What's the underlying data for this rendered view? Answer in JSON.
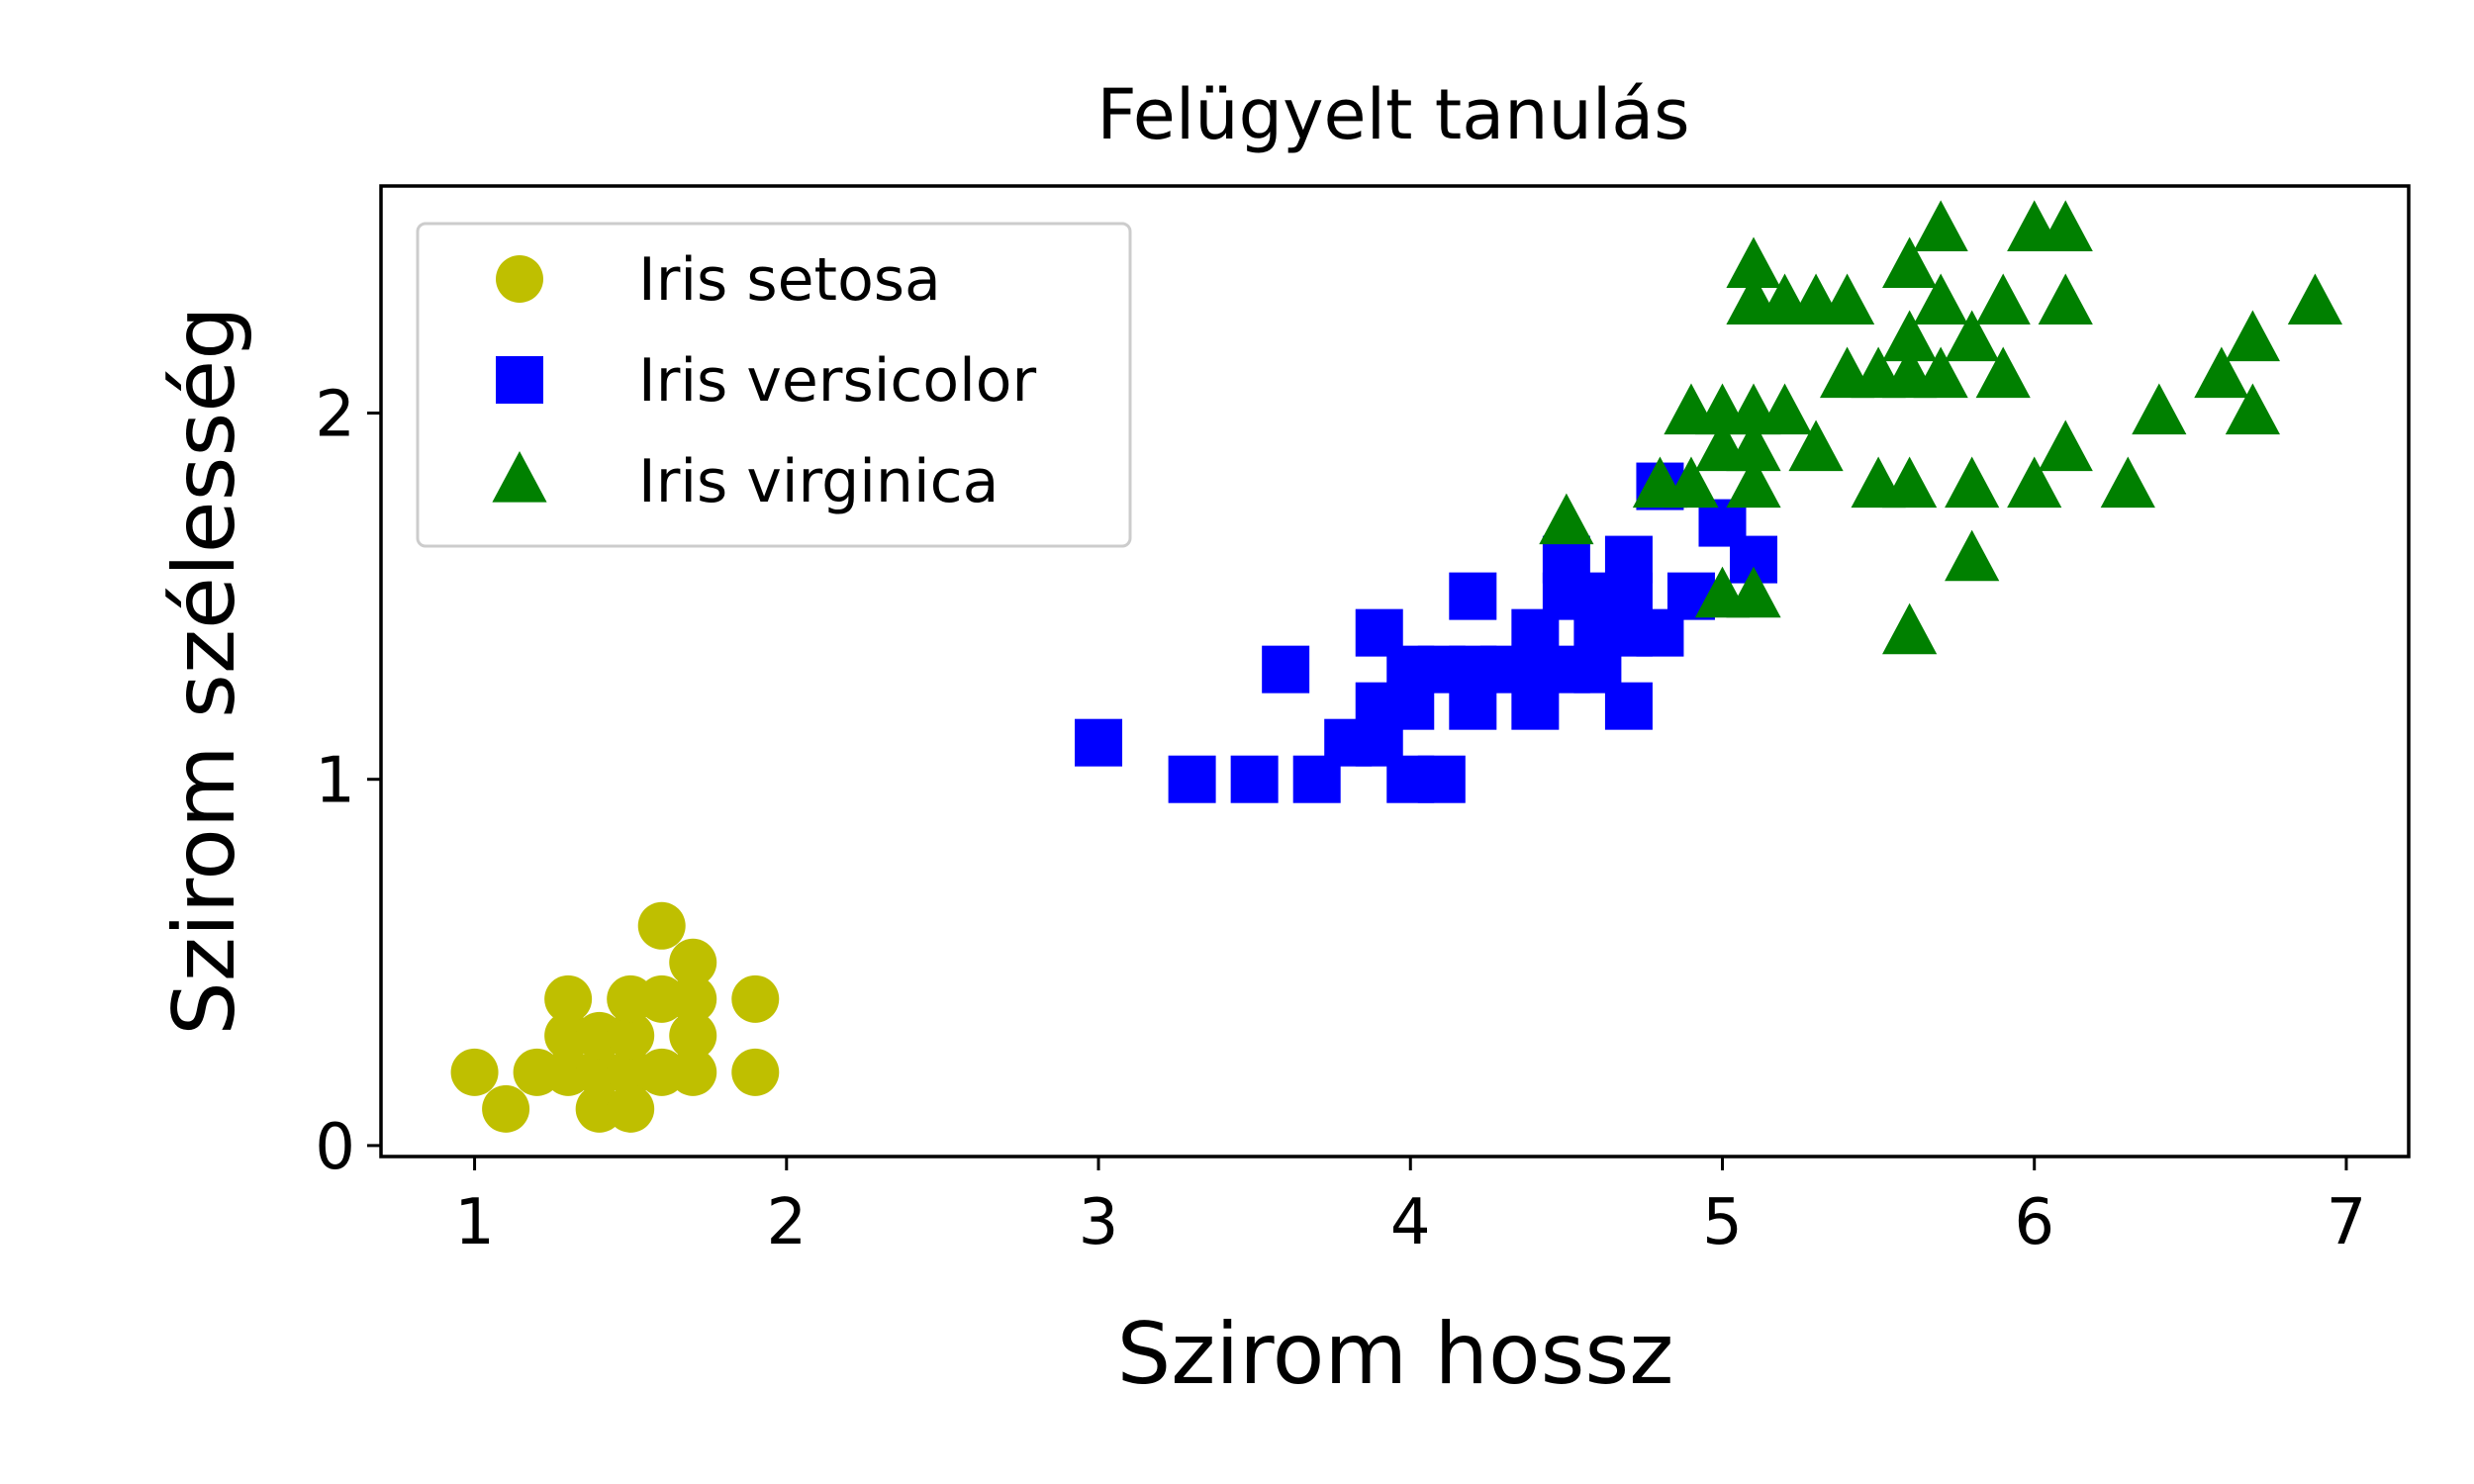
{
  "chart_data": {
    "type": "scatter",
    "title": "Felügyelt tanulás",
    "xlabel": "Szirom hossz",
    "ylabel": "Szirom szélesség",
    "xlim": [
      0.7,
      7.2
    ],
    "ylim": [
      -0.03,
      2.62
    ],
    "xticks": [
      1,
      2,
      3,
      4,
      5,
      6,
      7
    ],
    "xtick_labels": [
      "1",
      "2",
      "3",
      "4",
      "5",
      "6",
      "7"
    ],
    "yticks": [
      0,
      1,
      2
    ],
    "ytick_labels": [
      "0",
      "1",
      "2"
    ],
    "grid": false,
    "legend_position": "top-left",
    "series": [
      {
        "name": "Iris setosa",
        "marker": "circle",
        "color": "#bfbf00",
        "points": [
          [
            1.0,
            0.2
          ],
          [
            1.1,
            0.1
          ],
          [
            1.2,
            0.2
          ],
          [
            1.3,
            0.2
          ],
          [
            1.3,
            0.3
          ],
          [
            1.3,
            0.4
          ],
          [
            1.4,
            0.2
          ],
          [
            1.4,
            0.1
          ],
          [
            1.4,
            0.3
          ],
          [
            1.5,
            0.2
          ],
          [
            1.5,
            0.1
          ],
          [
            1.5,
            0.3
          ],
          [
            1.5,
            0.4
          ],
          [
            1.6,
            0.2
          ],
          [
            1.6,
            0.4
          ],
          [
            1.6,
            0.6
          ],
          [
            1.7,
            0.2
          ],
          [
            1.7,
            0.3
          ],
          [
            1.7,
            0.4
          ],
          [
            1.7,
            0.5
          ],
          [
            1.9,
            0.2
          ],
          [
            1.9,
            0.4
          ]
        ]
      },
      {
        "name": "Iris versicolor",
        "marker": "square",
        "color": "#0000ff",
        "points": [
          [
            3.0,
            1.1
          ],
          [
            3.3,
            1.0
          ],
          [
            3.5,
            1.0
          ],
          [
            3.6,
            1.3
          ],
          [
            3.7,
            1.0
          ],
          [
            3.8,
            1.1
          ],
          [
            3.9,
            1.1
          ],
          [
            3.9,
            1.2
          ],
          [
            3.9,
            1.4
          ],
          [
            4.0,
            1.0
          ],
          [
            4.0,
            1.2
          ],
          [
            4.0,
            1.3
          ],
          [
            4.1,
            1.0
          ],
          [
            4.1,
            1.3
          ],
          [
            4.2,
            1.2
          ],
          [
            4.2,
            1.3
          ],
          [
            4.2,
            1.5
          ],
          [
            4.3,
            1.3
          ],
          [
            4.4,
            1.2
          ],
          [
            4.4,
            1.3
          ],
          [
            4.4,
            1.4
          ],
          [
            4.5,
            1.3
          ],
          [
            4.5,
            1.5
          ],
          [
            4.5,
            1.6
          ],
          [
            4.6,
            1.3
          ],
          [
            4.6,
            1.4
          ],
          [
            4.6,
            1.5
          ],
          [
            4.7,
            1.2
          ],
          [
            4.7,
            1.4
          ],
          [
            4.7,
            1.5
          ],
          [
            4.7,
            1.6
          ],
          [
            4.8,
            1.4
          ],
          [
            4.8,
            1.8
          ],
          [
            4.9,
            1.5
          ],
          [
            5.0,
            1.7
          ],
          [
            5.1,
            1.6
          ]
        ]
      },
      {
        "name": "Iris virginica",
        "marker": "triangle",
        "color": "#008000",
        "points": [
          [
            4.5,
            1.7
          ],
          [
            4.8,
            1.8
          ],
          [
            4.9,
            1.8
          ],
          [
            4.9,
            2.0
          ],
          [
            5.0,
            1.5
          ],
          [
            5.0,
            1.9
          ],
          [
            5.0,
            2.0
          ],
          [
            5.1,
            1.5
          ],
          [
            5.1,
            1.8
          ],
          [
            5.1,
            1.9
          ],
          [
            5.1,
            2.0
          ],
          [
            5.1,
            2.3
          ],
          [
            5.1,
            2.4
          ],
          [
            5.2,
            2.0
          ],
          [
            5.2,
            2.3
          ],
          [
            5.3,
            1.9
          ],
          [
            5.3,
            2.3
          ],
          [
            5.4,
            2.1
          ],
          [
            5.4,
            2.3
          ],
          [
            5.5,
            1.8
          ],
          [
            5.5,
            2.1
          ],
          [
            5.6,
            1.4
          ],
          [
            5.6,
            1.8
          ],
          [
            5.6,
            2.1
          ],
          [
            5.6,
            2.2
          ],
          [
            5.6,
            2.4
          ],
          [
            5.7,
            2.1
          ],
          [
            5.7,
            2.3
          ],
          [
            5.7,
            2.5
          ],
          [
            5.8,
            1.6
          ],
          [
            5.8,
            1.8
          ],
          [
            5.8,
            2.2
          ],
          [
            5.9,
            2.1
          ],
          [
            5.9,
            2.3
          ],
          [
            6.0,
            1.8
          ],
          [
            6.0,
            2.5
          ],
          [
            6.1,
            1.9
          ],
          [
            6.1,
            2.3
          ],
          [
            6.1,
            2.5
          ],
          [
            6.3,
            1.8
          ],
          [
            6.4,
            2.0
          ],
          [
            6.6,
            2.1
          ],
          [
            6.7,
            2.0
          ],
          [
            6.7,
            2.2
          ],
          [
            6.9,
            2.3
          ]
        ]
      }
    ]
  }
}
